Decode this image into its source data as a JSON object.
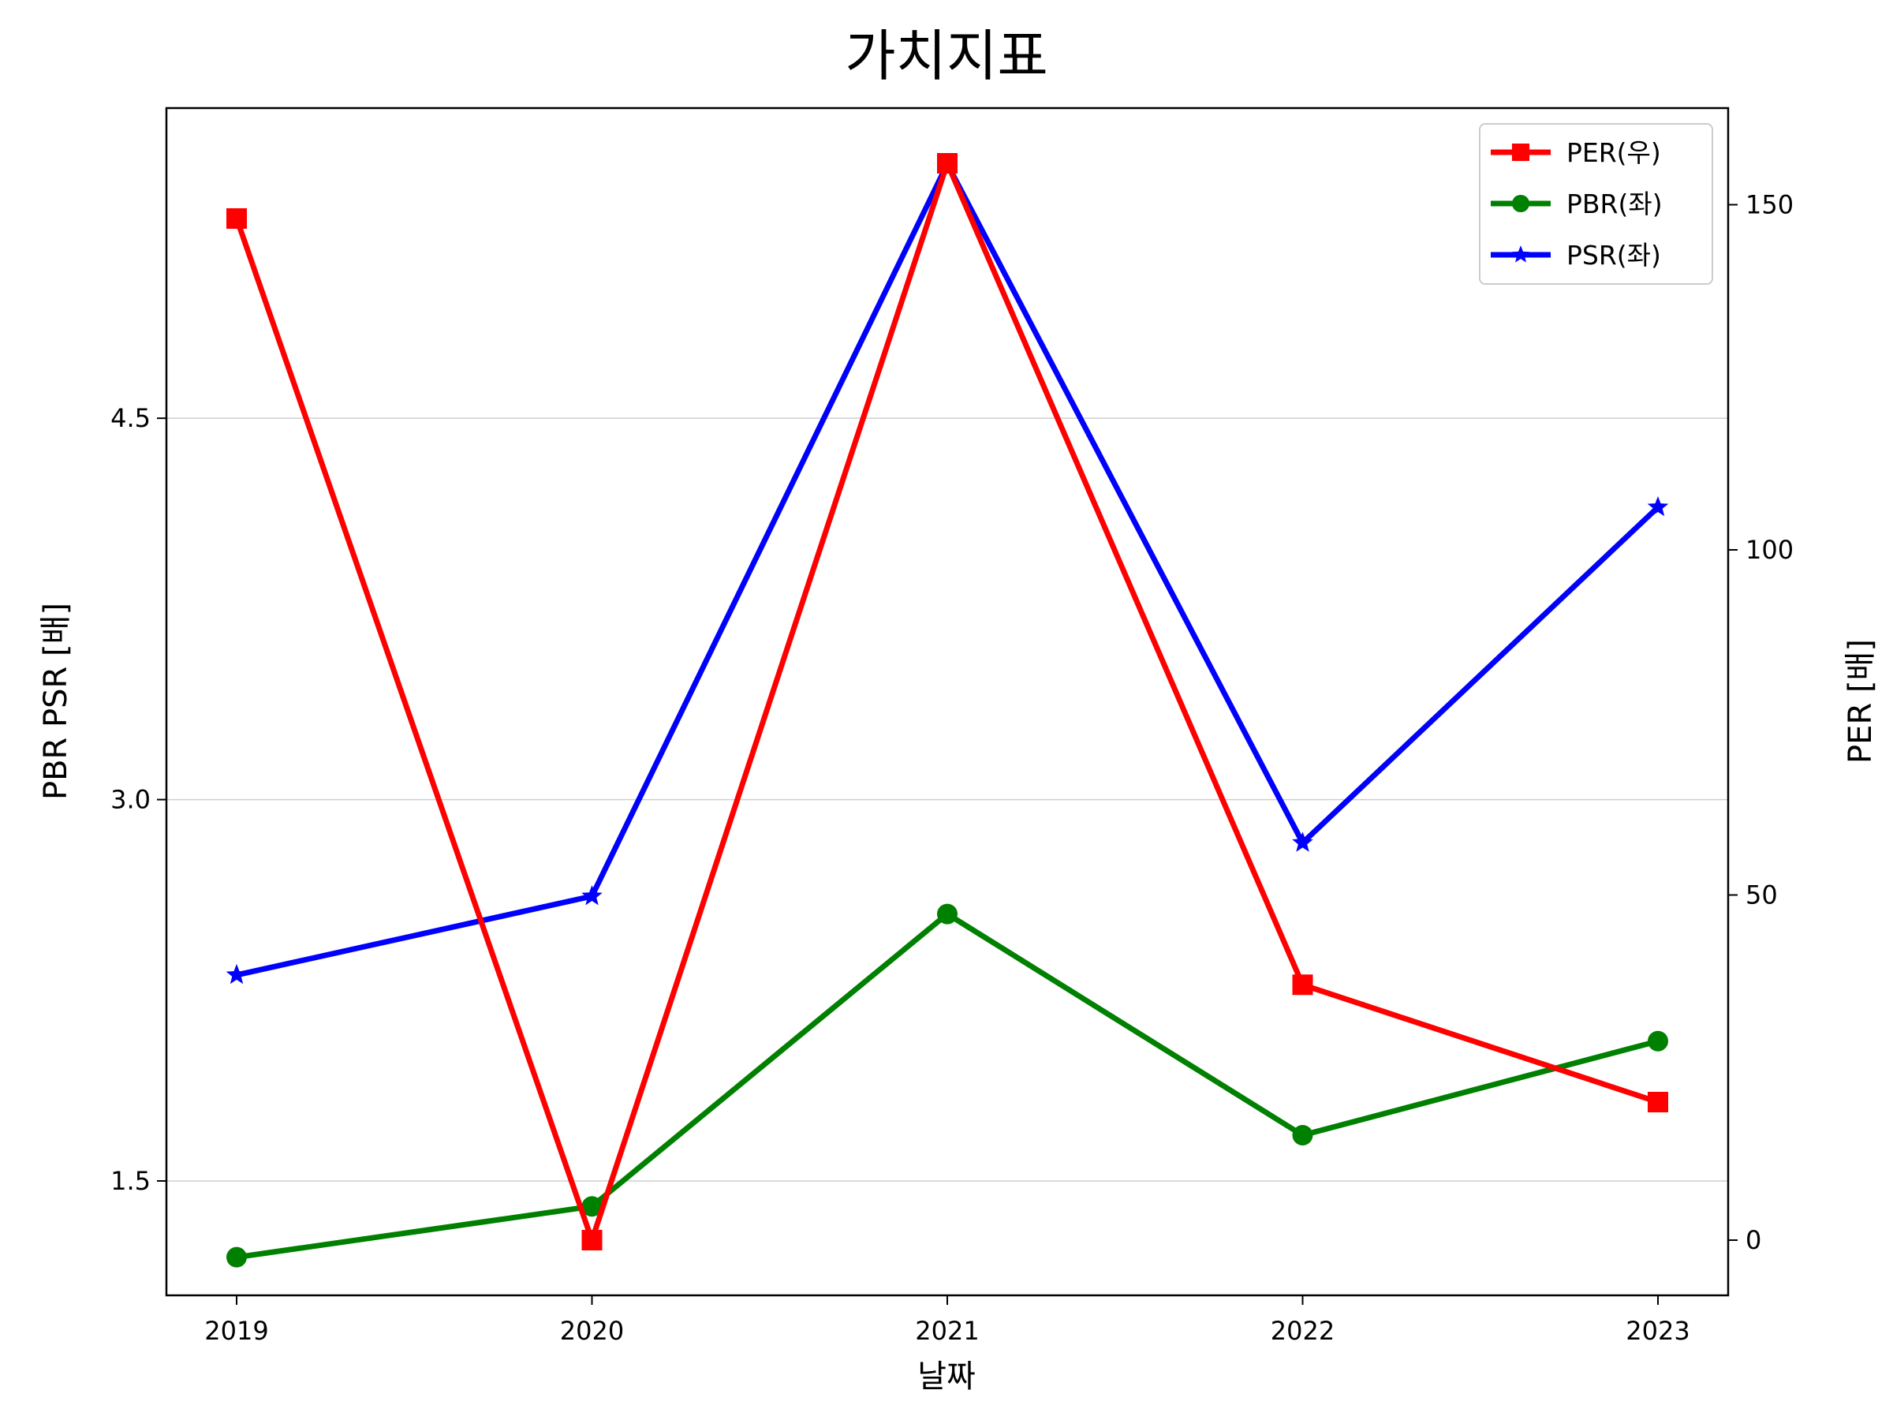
{
  "chart_data": {
    "type": "line",
    "title": "가치지표",
    "xlabel": "날짜",
    "ylabel_left": "PBR PSR [배]",
    "ylabel_right": "PER [배]",
    "ylabel_left_color": "#008000",
    "ylabel_right_color": "#ff0000",
    "categories": [
      "2019",
      "2020",
      "2021",
      "2022",
      "2023"
    ],
    "ylim_left": [
      1.05,
      5.72
    ],
    "ylim_right": [
      -8,
      164
    ],
    "yticks_left": [
      1.5,
      3.0,
      4.5
    ],
    "yticks_left_labels": [
      "1.5",
      "3.0",
      "4.5"
    ],
    "yticks_right": [
      0,
      50,
      100,
      150
    ],
    "yticks_right_labels": [
      "0",
      "50",
      "100",
      "150"
    ],
    "grid": "horizontal-left",
    "legend_position": "top-right",
    "series": [
      {
        "name": "PER(우)",
        "axis": "right",
        "color": "#ff0000",
        "marker": "square",
        "values": [
          148,
          0,
          156,
          37,
          20
        ]
      },
      {
        "name": "PBR(좌)",
        "axis": "left",
        "color": "#008000",
        "marker": "circle",
        "values": [
          1.2,
          1.4,
          2.55,
          1.68,
          2.05
        ]
      },
      {
        "name": "PSR(좌)",
        "axis": "left",
        "color": "#0000ff",
        "marker": "star",
        "values": [
          2.31,
          2.62,
          5.5,
          2.83,
          4.15
        ]
      }
    ]
  }
}
